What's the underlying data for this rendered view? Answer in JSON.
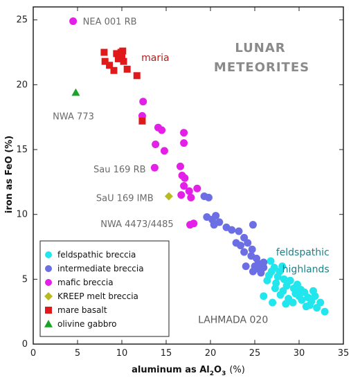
{
  "chart_data": {
    "type": "scatter",
    "title_lines": [
      "LUNAR",
      "METEORITES"
    ],
    "xlabel_main": "aluminum as Al",
    "xlabel_sub": "2",
    "xlabel_tail": "O",
    "xlabel_sub2": "3",
    "xlabel_unit": "(%)",
    "ylabel": "iron as FeO  (%)",
    "xlim": [
      0,
      35
    ],
    "ylim": [
      0,
      26
    ],
    "xticks": [
      0,
      5,
      10,
      15,
      20,
      25,
      30,
      35
    ],
    "yticks": [
      0,
      5,
      10,
      15,
      20,
      25
    ],
    "series": [
      {
        "name": "feldspathic breccia",
        "marker": "circle",
        "color": "#22e6ee",
        "points": [
          [
            26.8,
            6.4
          ],
          [
            27.2,
            5.9
          ],
          [
            26.6,
            5.3
          ],
          [
            27.8,
            5.6
          ],
          [
            28.3,
            5.0
          ],
          [
            27.4,
            4.7
          ],
          [
            28.6,
            4.5
          ],
          [
            29.0,
            4.9
          ],
          [
            29.4,
            4.3
          ],
          [
            28.2,
            4.1
          ],
          [
            29.8,
            4.6
          ],
          [
            30.2,
            4.2
          ],
          [
            29.6,
            3.9
          ],
          [
            30.6,
            4.0
          ],
          [
            31.0,
            3.6
          ],
          [
            30.3,
            3.4
          ],
          [
            31.4,
            3.3
          ],
          [
            31.8,
            3.7
          ],
          [
            31.2,
            3.0
          ],
          [
            32.4,
            3.2
          ],
          [
            32.0,
            2.8
          ],
          [
            32.9,
            2.5
          ],
          [
            28.8,
            3.5
          ],
          [
            27.9,
            3.8
          ],
          [
            27.3,
            4.3
          ],
          [
            26.4,
            4.9
          ],
          [
            26.9,
            5.6
          ],
          [
            28.1,
            6.0
          ],
          [
            27.6,
            5.2
          ],
          [
            29.3,
            3.2
          ],
          [
            28.5,
            3.1
          ],
          [
            27.0,
            3.2
          ],
          [
            30.8,
            2.9
          ],
          [
            26.0,
            3.7
          ],
          [
            31.6,
            4.1
          ],
          [
            30.0,
            3.7
          ]
        ]
      },
      {
        "name": "intermediate breccia",
        "marker": "circle",
        "color": "#6b6fe3",
        "points": [
          [
            19.3,
            11.4
          ],
          [
            19.8,
            11.3
          ],
          [
            19.6,
            9.8
          ],
          [
            20.2,
            9.6
          ],
          [
            20.6,
            9.9
          ],
          [
            21.0,
            9.4
          ],
          [
            20.4,
            9.2
          ],
          [
            21.8,
            9.0
          ],
          [
            22.4,
            8.8
          ],
          [
            23.2,
            8.7
          ],
          [
            24.8,
            9.2
          ],
          [
            23.8,
            8.2
          ],
          [
            22.9,
            7.8
          ],
          [
            23.4,
            7.6
          ],
          [
            24.2,
            7.8
          ],
          [
            24.7,
            7.3
          ],
          [
            23.8,
            7.1
          ],
          [
            24.6,
            6.8
          ],
          [
            25.2,
            6.6
          ],
          [
            25.0,
            6.0
          ],
          [
            24.0,
            6.0
          ],
          [
            25.4,
            5.8
          ],
          [
            26.0,
            5.9
          ],
          [
            25.7,
            5.5
          ],
          [
            26.0,
            6.3
          ],
          [
            25.4,
            6.2
          ],
          [
            24.8,
            5.6
          ]
        ]
      },
      {
        "name": "mafic breccia",
        "marker": "circle",
        "color": "#e41fe7",
        "points": [
          [
            4.5,
            24.9
          ],
          [
            12.4,
            18.7
          ],
          [
            12.3,
            17.6
          ],
          [
            14.1,
            16.7
          ],
          [
            14.5,
            16.5
          ],
          [
            13.8,
            15.4
          ],
          [
            14.8,
            14.9
          ],
          [
            17.0,
            16.3
          ],
          [
            17.0,
            15.5
          ],
          [
            16.6,
            13.7
          ],
          [
            13.7,
            13.6
          ],
          [
            16.8,
            13.0
          ],
          [
            17.1,
            12.8
          ],
          [
            17.0,
            12.2
          ],
          [
            17.6,
            11.8
          ],
          [
            16.7,
            11.5
          ],
          [
            17.8,
            11.3
          ],
          [
            18.5,
            12.0
          ],
          [
            17.7,
            9.2
          ],
          [
            18.1,
            9.3
          ]
        ]
      },
      {
        "name": "KREEP melt breccia",
        "marker": "diamond",
        "color": "#b7bb1f",
        "points": [
          [
            15.3,
            11.4
          ]
        ]
      },
      {
        "name": "mare basalt",
        "marker": "square",
        "color": "#e01a1a",
        "points": [
          [
            8.0,
            22.5
          ],
          [
            8.1,
            21.8
          ],
          [
            8.6,
            21.5
          ],
          [
            9.1,
            21.1
          ],
          [
            9.4,
            22.4
          ],
          [
            9.6,
            22.0
          ],
          [
            9.9,
            22.5
          ],
          [
            10.0,
            22.2
          ],
          [
            10.2,
            21.8
          ],
          [
            10.6,
            21.2
          ],
          [
            11.7,
            20.7
          ],
          [
            10.1,
            22.6
          ],
          [
            12.3,
            17.2
          ]
        ]
      },
      {
        "name": "olivine gabbro",
        "marker": "triangle",
        "color": "#1aa324",
        "points": [
          [
            4.8,
            19.4
          ]
        ]
      }
    ],
    "annotations": [
      {
        "text": "NEA 001 RB",
        "x": 5.6,
        "y": 24.9,
        "style": "anno"
      },
      {
        "text": "maria",
        "x": 12.2,
        "y": 22.1,
        "style": "anno-maria"
      },
      {
        "text": "NWA 773",
        "x": 2.2,
        "y": 17.6,
        "style": "anno"
      },
      {
        "text": "Sau 169 RB",
        "x": 6.8,
        "y": 13.5,
        "style": "anno"
      },
      {
        "text": "SaU 169 IMB",
        "x": 7.1,
        "y": 11.3,
        "style": "anno"
      },
      {
        "text": "NWA 4473/4485",
        "x": 7.6,
        "y": 9.3,
        "style": "anno"
      },
      {
        "text": "feldspathic",
        "x": 27.4,
        "y": 7.1,
        "style": "anno-high"
      },
      {
        "text": "highlands",
        "x": 28.1,
        "y": 5.8,
        "style": "anno-high"
      },
      {
        "text": "LAHMADA 020",
        "x": 18.6,
        "y": 1.9,
        "style": "anno-lah"
      }
    ],
    "legend_position": "bottom-left",
    "grid": false
  }
}
